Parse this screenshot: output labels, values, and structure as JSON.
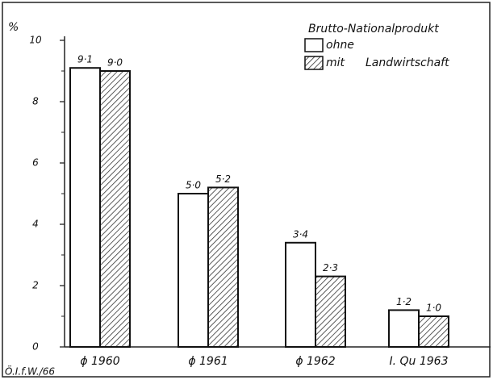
{
  "chart_data": {
    "type": "bar",
    "y_label": "%",
    "legend_title": "Brutto-Nationalprodukt",
    "legend_note": "Landwirtschaft",
    "source": "Ö.I.f.W./66",
    "categories": [
      "ϕ 1960",
      "ϕ 1961",
      "ϕ 1962",
      "I. Qu 1963"
    ],
    "series": [
      {
        "name": "ohne",
        "color": "#ffffff",
        "hatch": false,
        "values": [
          9.1,
          5.0,
          3.4,
          1.2
        ],
        "value_labels": [
          "9·1",
          "5·0",
          "3·4",
          "1·2"
        ]
      },
      {
        "name": "mit",
        "color": "#333333",
        "hatch": true,
        "values": [
          9.0,
          5.2,
          2.3,
          1.0
        ],
        "value_labels": [
          "9·0",
          "5·2",
          "2·3",
          "1·0"
        ]
      }
    ],
    "ylim": [
      0,
      10
    ],
    "yticks": [
      0,
      2,
      4,
      6,
      8,
      10
    ],
    "minor_yticks": [
      1,
      3,
      5,
      7,
      9
    ],
    "grid": false
  }
}
